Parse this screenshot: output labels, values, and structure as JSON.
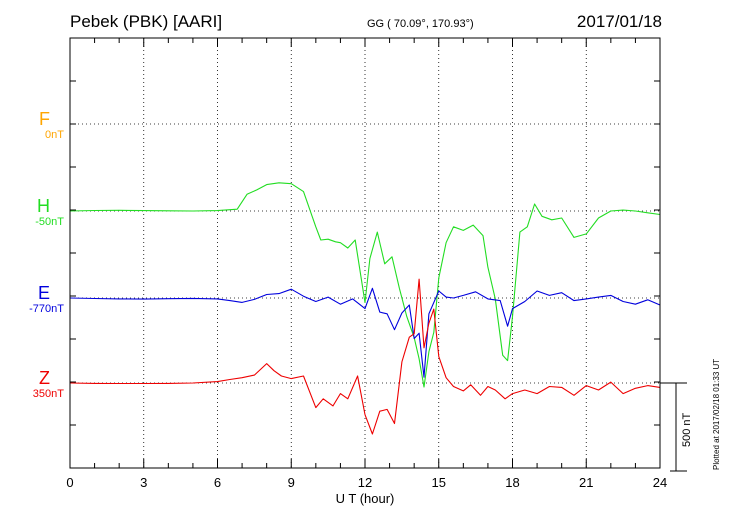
{
  "header": {
    "station": "Pebek (PBK)  [AARI]",
    "coords": "GG ( 70.09°, 170.93°)",
    "date": "2017/01/18"
  },
  "scale_bar_label": "500 nT",
  "plotted_note": "Plotted at 2017/02/18 01:33 UT",
  "chart_data": {
    "type": "line",
    "xlabel": "U T (hour)",
    "xlim": [
      0,
      24
    ],
    "xticks": [
      0,
      3,
      6,
      9,
      12,
      15,
      18,
      21,
      24
    ],
    "grid": true,
    "scale_bar_nT": 500,
    "series": [
      {
        "name": "F",
        "baseline_label": "0nT",
        "color": "#ffa500",
        "x": [],
        "y": []
      },
      {
        "name": "H",
        "baseline_label": "-50nT",
        "color": "#22dd22",
        "x": [
          0,
          1,
          2,
          3,
          4,
          5,
          6,
          6.8,
          7.2,
          7.6,
          8,
          8.5,
          9,
          9.5,
          10,
          10.2,
          10.5,
          10.8,
          11,
          11.3,
          11.6,
          12,
          12.2,
          12.5,
          12.8,
          13.1,
          13.4,
          13.7,
          14,
          14.2,
          14.4,
          14.6,
          14.8,
          15,
          15.3,
          15.6,
          16,
          16.4,
          16.8,
          17,
          17.3,
          17.6,
          17.8,
          18,
          18.3,
          18.6,
          18.9,
          19.2,
          19.6,
          20,
          20.5,
          21,
          21.5,
          22,
          22.5,
          23,
          23.5,
          24
        ],
        "y": [
          0,
          3,
          4,
          2,
          1,
          0,
          2,
          10,
          95,
          120,
          150,
          160,
          155,
          110,
          -90,
          -165,
          -160,
          -175,
          -180,
          -210,
          -165,
          -520,
          -270,
          -120,
          -300,
          -260,
          -440,
          -600,
          -720,
          -840,
          -1000,
          -800,
          -690,
          -380,
          -180,
          -90,
          -110,
          -80,
          -140,
          -320,
          -500,
          -820,
          -850,
          -600,
          -120,
          -90,
          40,
          -30,
          -50,
          -40,
          -150,
          -130,
          -40,
          0,
          5,
          0,
          -10,
          -20
        ]
      },
      {
        "name": "E",
        "baseline_label": "-770nT",
        "color": "#0000dd",
        "x": [
          0,
          1,
          2,
          3,
          4,
          5,
          6,
          6.5,
          7,
          7.5,
          8,
          8.5,
          9,
          9.5,
          10,
          10.5,
          11,
          11.5,
          12,
          12.3,
          12.6,
          12.9,
          13.2,
          13.5,
          13.8,
          14,
          14.2,
          14.4,
          14.6,
          15,
          15.3,
          15.6,
          16,
          16.5,
          17,
          17.5,
          17.8,
          18,
          18.5,
          19,
          19.5,
          20,
          20.5,
          21,
          21.5,
          22,
          22.5,
          23,
          23.5,
          24
        ],
        "y": [
          0,
          -3,
          -5,
          -6,
          -4,
          -2,
          -5,
          -15,
          -25,
          -8,
          20,
          25,
          50,
          10,
          -20,
          5,
          -35,
          -5,
          -60,
          55,
          -80,
          -90,
          -180,
          -85,
          -40,
          -230,
          -200,
          -450,
          -90,
          40,
          5,
          0,
          15,
          35,
          -5,
          -15,
          -160,
          -60,
          -20,
          40,
          15,
          30,
          -15,
          -5,
          5,
          15,
          -20,
          -35,
          -10,
          -40
        ]
      },
      {
        "name": "Z",
        "baseline_label": "350nT",
        "color": "#ee0000",
        "x": [
          0,
          1,
          2,
          3,
          4,
          5,
          6,
          6.5,
          7,
          7.5,
          8,
          8.3,
          8.6,
          9,
          9.5,
          10,
          10.3,
          10.7,
          11,
          11.3,
          11.7,
          12,
          12.3,
          12.6,
          12.9,
          13.2,
          13.5,
          13.8,
          14,
          14.2,
          14.4,
          14.6,
          14.8,
          15,
          15.3,
          15.6,
          16,
          16.3,
          16.7,
          17,
          17.3,
          17.7,
          18,
          18.5,
          19,
          19.5,
          20,
          20.5,
          21,
          21.5,
          22,
          22.5,
          23,
          23.5,
          24
        ],
        "y": [
          0,
          -2,
          -3,
          -3,
          -2,
          0,
          8,
          20,
          30,
          45,
          110,
          70,
          40,
          25,
          40,
          -140,
          -90,
          -130,
          -60,
          -90,
          40,
          -180,
          -290,
          -160,
          -150,
          -230,
          120,
          260,
          280,
          590,
          200,
          340,
          420,
          150,
          30,
          -20,
          -45,
          -10,
          -70,
          -20,
          -40,
          -90,
          -60,
          -40,
          -60,
          -20,
          -25,
          -70,
          -15,
          -40,
          5,
          -60,
          -30,
          -15,
          -25
        ]
      }
    ]
  }
}
